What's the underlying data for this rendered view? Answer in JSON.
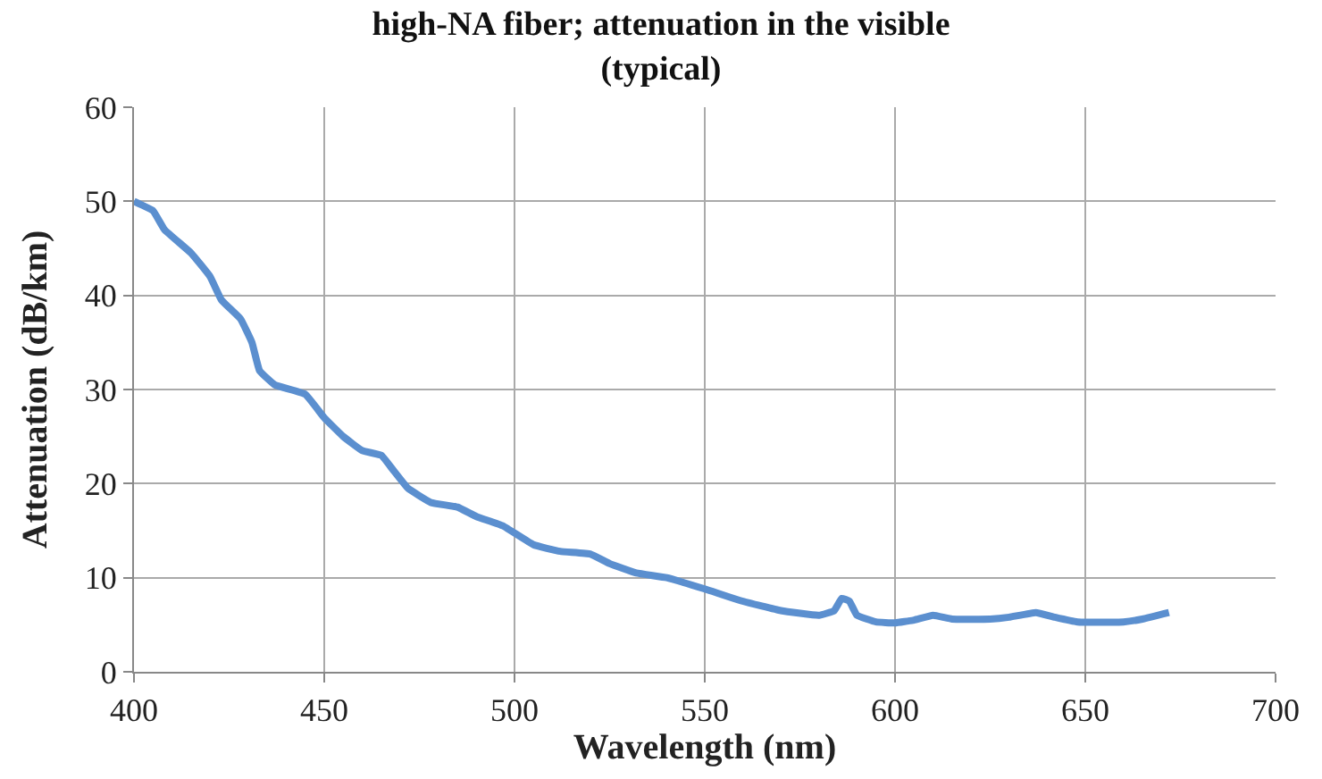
{
  "chart_data": {
    "type": "line",
    "title": "high-NA fiber; attenuation in the visible\n(typical)",
    "xlabel": "Wavelength (nm)",
    "ylabel": "Attenuation (dB/km)",
    "x": [
      400,
      405,
      408,
      415,
      420,
      423,
      428,
      431,
      433,
      437,
      445,
      450,
      455,
      460,
      465,
      468,
      472,
      478,
      485,
      490,
      497,
      505,
      512,
      520,
      525,
      532,
      540,
      550,
      560,
      570,
      580,
      584,
      586,
      588,
      590,
      595,
      600,
      605,
      610,
      615,
      625,
      630,
      637,
      642,
      648,
      660,
      665,
      672
    ],
    "series": [
      {
        "color": "#5b8fcf",
        "values": [
          50,
          49,
          47,
          44.5,
          42,
          39.5,
          37.5,
          35,
          32,
          30.5,
          29.5,
          27,
          25,
          23.5,
          23,
          21.5,
          19.5,
          18,
          17.5,
          16.5,
          15.5,
          13.5,
          12.8,
          12.5,
          11.5,
          10.5,
          10,
          8.8,
          7.5,
          6.5,
          6,
          6.5,
          7.8,
          7.5,
          6,
          5.3,
          5.2,
          5.5,
          6,
          5.6,
          5.6,
          5.8,
          6.3,
          5.8,
          5.3,
          5.3,
          5.6,
          6.3
        ]
      }
    ],
    "xlim": [
      400,
      700
    ],
    "xticks": [
      400,
      450,
      500,
      550,
      600,
      650,
      700
    ],
    "ylim": [
      0,
      60
    ],
    "yticks": [
      0,
      10,
      20,
      30,
      40,
      50,
      60
    ],
    "grid": true,
    "legend": false,
    "marker": "none",
    "line_style": "solid"
  }
}
